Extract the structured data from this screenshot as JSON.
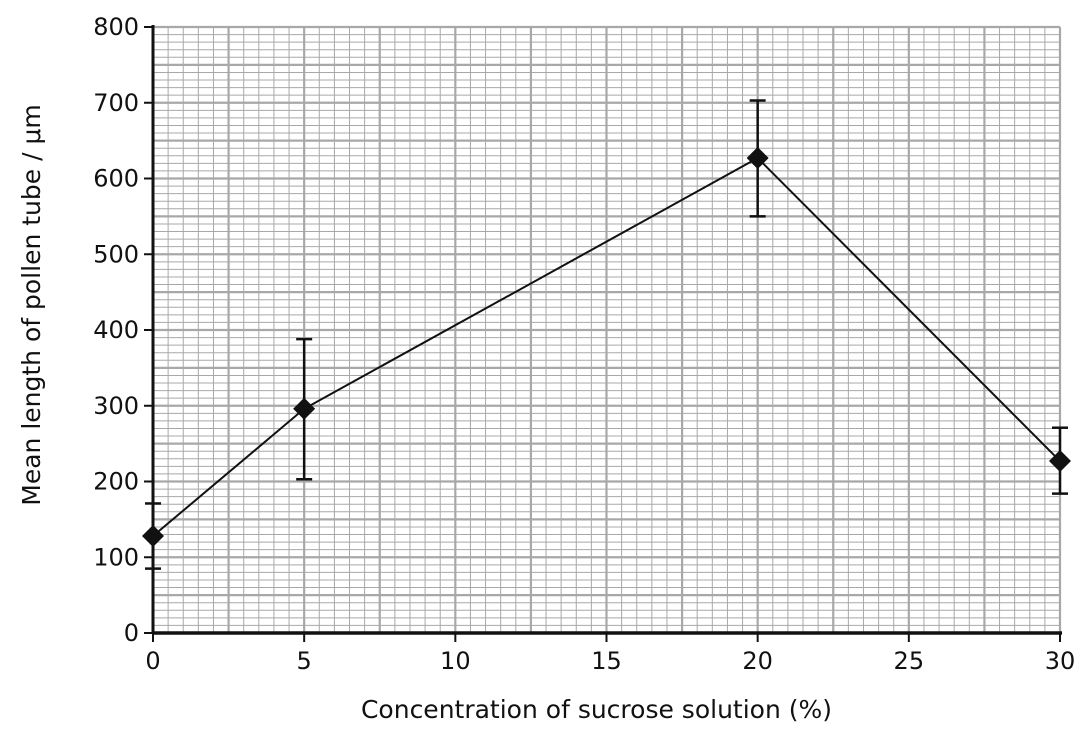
{
  "chart_data": {
    "type": "line",
    "title": "",
    "xlabel": "Concentration of sucrose solution (%)",
    "ylabel": "Mean length of pollen tube / μm",
    "xlim": [
      0,
      30
    ],
    "ylim": [
      0,
      800
    ],
    "x_ticks": [
      0,
      5,
      10,
      15,
      20,
      25,
      30
    ],
    "y_ticks": [
      0,
      100,
      200,
      300,
      400,
      500,
      600,
      700,
      800
    ],
    "grid": true,
    "x_minor_per_major": 10,
    "y_minor_per_major": 10,
    "series": [
      {
        "x": [
          0,
          5,
          20,
          30
        ],
        "y": [
          128,
          296,
          627,
          227
        ],
        "error_low": [
          85,
          203,
          550,
          184
        ],
        "error_high": [
          171,
          388,
          703,
          271
        ],
        "marker": "diamond",
        "color": "#111111"
      }
    ],
    "legend": "none"
  },
  "colors": {
    "grid": "#a8a8a8",
    "axis": "#111111",
    "marker": "#111111"
  }
}
